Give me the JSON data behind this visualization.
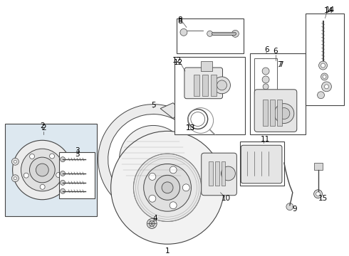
{
  "background_color": "#ffffff",
  "line_color": "#444444",
  "fig_width": 4.9,
  "fig_height": 3.6,
  "dpi": 100,
  "box_fill": "#dde8f0",
  "part_fill": "#f5f5f5",
  "label_fontsize": 7.5
}
